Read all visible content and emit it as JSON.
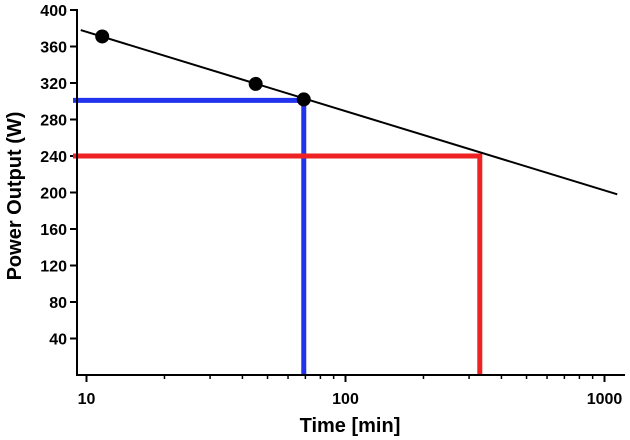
{
  "chart_data": {
    "type": "scatter",
    "title": "",
    "xlabel": "Time [min]",
    "ylabel": "Power Output (W)",
    "xscale": "log",
    "xlim": [
      9,
      1200
    ],
    "ylim": [
      0,
      400
    ],
    "x_ticks": [
      10,
      100,
      1000
    ],
    "x_tick_labels": [
      "10",
      "100",
      "1000"
    ],
    "y_ticks": [
      40,
      80,
      120,
      160,
      200,
      240,
      280,
      320,
      360,
      400
    ],
    "y_tick_labels": [
      "40",
      "80",
      "120",
      "160",
      "200",
      "240",
      "280",
      "320",
      "360",
      "400"
    ],
    "series": [
      {
        "name": "data points",
        "kind": "points",
        "color": "#000000",
        "points": [
          [
            11.5,
            371
          ],
          [
            45,
            319
          ],
          [
            69,
            302
          ]
        ]
      },
      {
        "name": "fit line",
        "kind": "line",
        "color": "#000000",
        "points": [
          [
            9.5,
            378
          ],
          [
            1120,
            198
          ]
        ]
      },
      {
        "name": "blue marker",
        "kind": "line",
        "color": "#2233ee",
        "points": [
          [
            9,
            301
          ],
          [
            69,
            301
          ],
          [
            69,
            0
          ]
        ]
      },
      {
        "name": "red marker",
        "kind": "line",
        "color": "#ee2222",
        "points": [
          [
            9,
            240
          ],
          [
            330,
            240
          ],
          [
            330,
            0
          ]
        ]
      }
    ]
  }
}
